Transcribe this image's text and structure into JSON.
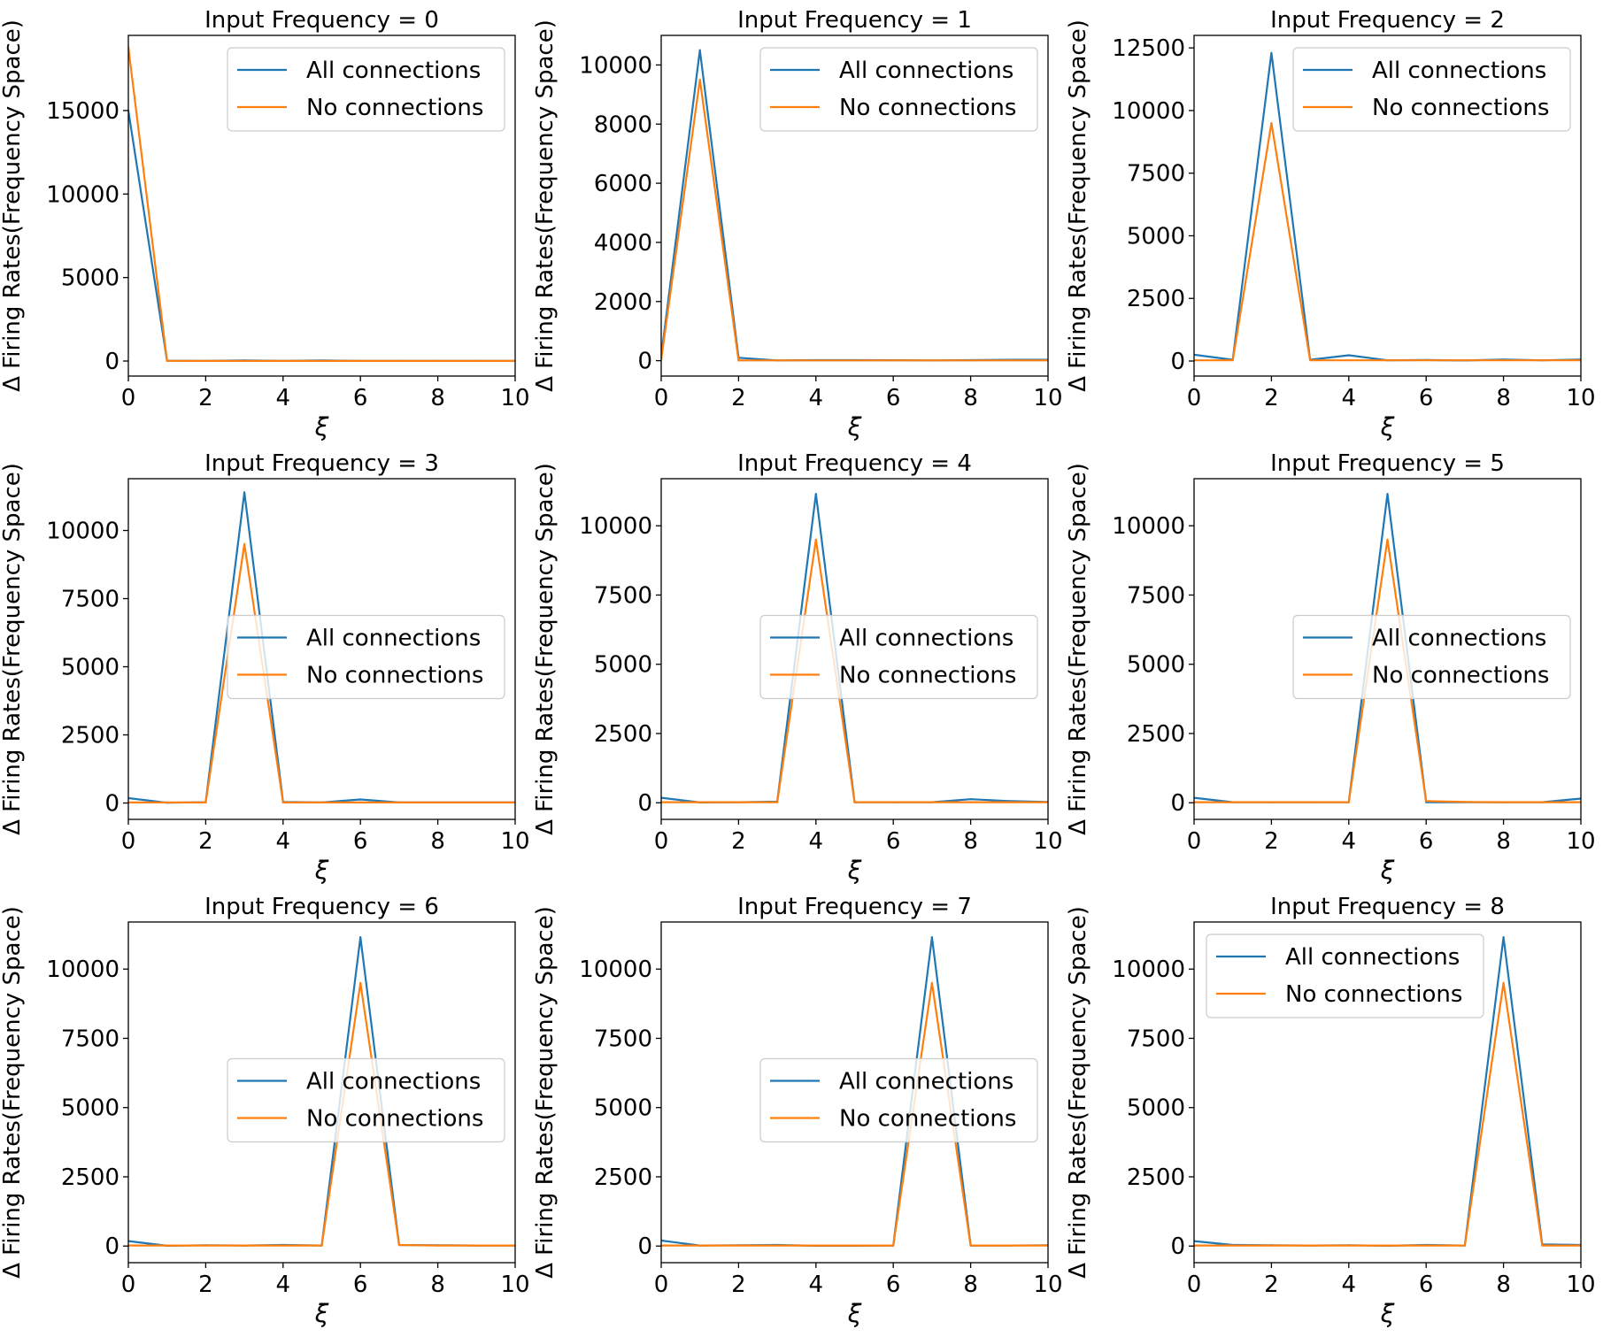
{
  "figure": {
    "series_labels": [
      "All connections",
      "No connections"
    ],
    "colors": {
      "all_connections": "#1f77b4",
      "no_connections": "#ff7f0e"
    },
    "xlabel": "ξ",
    "ylabel": "Δ Firing Rates(Frequency Space)"
  },
  "chart_data": [
    {
      "type": "line",
      "title": "Input Frequency = 0",
      "xlabel": "ξ",
      "ylabel": "Δ Firing Rates(Frequency Space)",
      "xlim": [
        0,
        10
      ],
      "ylim": [
        -900,
        19500
      ],
      "xticks": [
        0,
        2,
        4,
        6,
        8,
        10
      ],
      "yticks": [
        0,
        5000,
        10000,
        15000
      ],
      "yticklabels": [
        "0",
        "5000",
        "10000",
        "15000"
      ],
      "legend_loc": "upper right",
      "x": [
        0,
        1,
        2,
        3,
        4,
        5,
        6,
        7,
        8,
        9,
        10
      ],
      "series": [
        {
          "name": "All connections",
          "values": [
            15000,
            20,
            10,
            40,
            10,
            30,
            10,
            5,
            5,
            5,
            5
          ]
        },
        {
          "name": "No connections",
          "values": [
            18800,
            10,
            5,
            5,
            5,
            5,
            5,
            5,
            5,
            5,
            5
          ]
        }
      ]
    },
    {
      "type": "line",
      "title": "Input Frequency = 1",
      "xlabel": "ξ",
      "ylabel": "Δ Firing Rates(Frequency Space)",
      "xlim": [
        0,
        10
      ],
      "ylim": [
        -520,
        11000
      ],
      "xticks": [
        0,
        2,
        4,
        6,
        8,
        10
      ],
      "yticks": [
        0,
        2000,
        4000,
        6000,
        8000,
        10000
      ],
      "yticklabels": [
        "0",
        "2000",
        "4000",
        "6000",
        "8000",
        "10000"
      ],
      "legend_loc": "upper right",
      "x": [
        0,
        1,
        2,
        3,
        4,
        5,
        6,
        7,
        8,
        9,
        10
      ],
      "series": [
        {
          "name": "All connections",
          "values": [
            150,
            10500,
            100,
            10,
            20,
            20,
            15,
            10,
            20,
            30,
            30
          ]
        },
        {
          "name": "No connections",
          "values": [
            40,
            9500,
            10,
            10,
            10,
            10,
            10,
            10,
            10,
            10,
            10
          ]
        }
      ]
    },
    {
      "type": "line",
      "title": "Input Frequency = 2",
      "xlabel": "ξ",
      "ylabel": "Δ Firing Rates(Frequency Space)",
      "xlim": [
        0,
        10
      ],
      "ylim": [
        -600,
        13000
      ],
      "xticks": [
        0,
        2,
        4,
        6,
        8,
        10
      ],
      "yticks": [
        0,
        2500,
        5000,
        7500,
        10000,
        12500
      ],
      "yticklabels": [
        "0",
        "2500",
        "5000",
        "7500",
        "10000",
        "12500"
      ],
      "legend_loc": "upper right",
      "x": [
        0,
        1,
        2,
        3,
        4,
        5,
        6,
        7,
        8,
        9,
        10
      ],
      "series": [
        {
          "name": "All connections",
          "values": [
            250,
            50,
            12300,
            50,
            230,
            30,
            40,
            20,
            60,
            30,
            60
          ]
        },
        {
          "name": "No connections",
          "values": [
            30,
            30,
            9500,
            30,
            30,
            30,
            30,
            30,
            30,
            30,
            30
          ]
        }
      ]
    },
    {
      "type": "line",
      "title": "Input Frequency = 3",
      "xlabel": "ξ",
      "ylabel": "Δ Firing Rates(Frequency Space)",
      "xlim": [
        0,
        10
      ],
      "ylim": [
        -600,
        11900
      ],
      "xticks": [
        0,
        2,
        4,
        6,
        8,
        10
      ],
      "yticks": [
        0,
        2500,
        5000,
        7500,
        10000
      ],
      "yticklabels": [
        "0",
        "2500",
        "5000",
        "7500",
        "10000"
      ],
      "legend_loc": "center right",
      "x": [
        0,
        1,
        2,
        3,
        4,
        5,
        6,
        7,
        8,
        9,
        10
      ],
      "series": [
        {
          "name": "All connections",
          "values": [
            180,
            10,
            30,
            11400,
            40,
            20,
            130,
            20,
            20,
            20,
            20
          ]
        },
        {
          "name": "No connections",
          "values": [
            20,
            20,
            20,
            9500,
            20,
            20,
            20,
            20,
            20,
            20,
            20
          ]
        }
      ]
    },
    {
      "type": "line",
      "title": "Input Frequency = 4",
      "xlabel": "ξ",
      "ylabel": "Δ Firing Rates(Frequency Space)",
      "xlim": [
        0,
        10
      ],
      "ylim": [
        -600,
        11700
      ],
      "xticks": [
        0,
        2,
        4,
        6,
        8,
        10
      ],
      "yticks": [
        0,
        2500,
        5000,
        7500,
        10000
      ],
      "yticklabels": [
        "0",
        "2500",
        "5000",
        "7500",
        "10000"
      ],
      "legend_loc": "center right",
      "x": [
        0,
        1,
        2,
        3,
        4,
        5,
        6,
        7,
        8,
        9,
        10
      ],
      "series": [
        {
          "name": "All connections",
          "values": [
            180,
            10,
            20,
            40,
            11150,
            20,
            20,
            20,
            130,
            60,
            30
          ]
        },
        {
          "name": "No connections",
          "values": [
            20,
            20,
            20,
            20,
            9500,
            20,
            20,
            20,
            20,
            20,
            20
          ]
        }
      ]
    },
    {
      "type": "line",
      "title": "Input Frequency = 5",
      "xlabel": "ξ",
      "ylabel": "Δ Firing Rates(Frequency Space)",
      "xlim": [
        0,
        10
      ],
      "ylim": [
        -600,
        11700
      ],
      "xticks": [
        0,
        2,
        4,
        6,
        8,
        10
      ],
      "yticks": [
        0,
        2500,
        5000,
        7500,
        10000
      ],
      "yticklabels": [
        "0",
        "2500",
        "5000",
        "7500",
        "10000"
      ],
      "legend_loc": "center right",
      "x": [
        0,
        1,
        2,
        3,
        4,
        5,
        6,
        7,
        8,
        9,
        10
      ],
      "series": [
        {
          "name": "All connections",
          "values": [
            180,
            20,
            20,
            20,
            20,
            11150,
            20,
            20,
            20,
            20,
            150
          ]
        },
        {
          "name": "No connections",
          "values": [
            20,
            20,
            20,
            20,
            20,
            9500,
            60,
            30,
            20,
            20,
            20
          ]
        }
      ]
    },
    {
      "type": "line",
      "title": "Input Frequency = 6",
      "xlabel": "ξ",
      "ylabel": "Δ Firing Rates(Frequency Space)",
      "xlim": [
        0,
        10
      ],
      "ylim": [
        -600,
        11700
      ],
      "xticks": [
        0,
        2,
        4,
        6,
        8,
        10
      ],
      "yticks": [
        0,
        2500,
        5000,
        7500,
        10000
      ],
      "yticklabels": [
        "0",
        "2500",
        "5000",
        "7500",
        "10000"
      ],
      "legend_loc": "center right",
      "x": [
        0,
        1,
        2,
        3,
        4,
        5,
        6,
        7,
        8,
        9,
        10
      ],
      "series": [
        {
          "name": "All connections",
          "values": [
            180,
            10,
            30,
            20,
            40,
            20,
            11150,
            40,
            30,
            20,
            20
          ]
        },
        {
          "name": "No connections",
          "values": [
            20,
            20,
            20,
            20,
            20,
            20,
            9500,
            40,
            20,
            20,
            20
          ]
        }
      ]
    },
    {
      "type": "line",
      "title": "Input Frequency = 7",
      "xlabel": "ξ",
      "ylabel": "Δ Firing Rates(Frequency Space)",
      "xlim": [
        0,
        10
      ],
      "ylim": [
        -600,
        11700
      ],
      "xticks": [
        0,
        2,
        4,
        6,
        8,
        10
      ],
      "yticks": [
        0,
        2500,
        5000,
        7500,
        10000
      ],
      "yticklabels": [
        "0",
        "2500",
        "5000",
        "7500",
        "10000"
      ],
      "legend_loc": "center right",
      "x": [
        0,
        1,
        2,
        3,
        4,
        5,
        6,
        7,
        8,
        9,
        10
      ],
      "series": [
        {
          "name": "All connections",
          "values": [
            200,
            20,
            30,
            40,
            10,
            10,
            20,
            11150,
            20,
            20,
            30
          ]
        },
        {
          "name": "No connections",
          "values": [
            20,
            20,
            20,
            20,
            20,
            20,
            20,
            9500,
            20,
            20,
            20
          ]
        }
      ]
    },
    {
      "type": "line",
      "title": "Input Frequency = 8",
      "xlabel": "ξ",
      "ylabel": "Δ Firing Rates(Frequency Space)",
      "xlim": [
        0,
        10
      ],
      "ylim": [
        -600,
        11700
      ],
      "xticks": [
        0,
        2,
        4,
        6,
        8,
        10
      ],
      "yticks": [
        0,
        2500,
        5000,
        7500,
        10000
      ],
      "yticklabels": [
        "0",
        "2500",
        "5000",
        "7500",
        "10000"
      ],
      "legend_loc": "upper left",
      "x": [
        0,
        1,
        2,
        3,
        4,
        5,
        6,
        7,
        8,
        9,
        10
      ],
      "series": [
        {
          "name": "All connections",
          "values": [
            180,
            40,
            30,
            20,
            30,
            10,
            40,
            20,
            11150,
            60,
            40
          ]
        },
        {
          "name": "No connections",
          "values": [
            20,
            20,
            20,
            20,
            20,
            20,
            20,
            20,
            9500,
            20,
            20
          ]
        }
      ]
    }
  ]
}
